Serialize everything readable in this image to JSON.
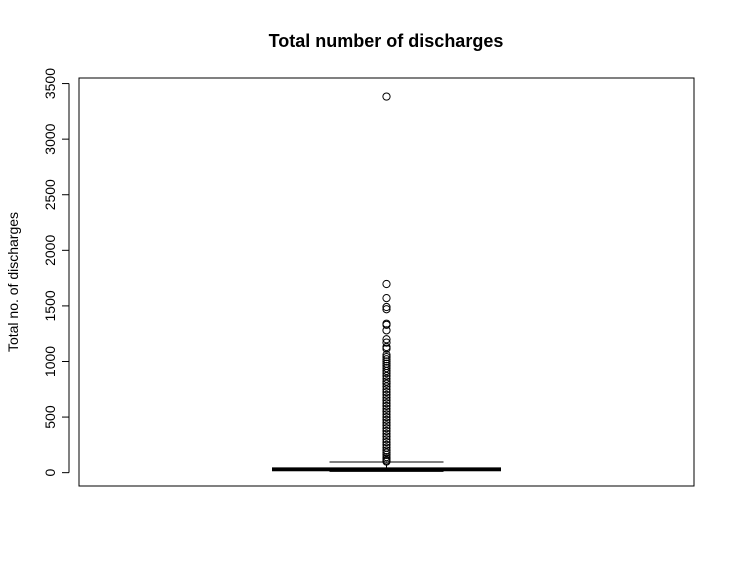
{
  "chart_data": {
    "type": "boxplot",
    "title": "Total number of discharges",
    "xlabel": "",
    "ylabel": "Total no. of discharges",
    "ylim": [
      -120,
      3550
    ],
    "yticks": [
      0,
      500,
      1000,
      1500,
      2000,
      2500,
      3000,
      3500
    ],
    "grid": false,
    "box": {
      "whisker_low": 11,
      "q1": 17,
      "median": 29,
      "q3": 43,
      "whisker_high": 96
    },
    "outliers": [
      3383,
      1697,
      1570,
      1490,
      1470,
      1340,
      1330,
      1280,
      1200,
      1170,
      1130,
      1115,
      1060,
      1040,
      1020,
      1000,
      980,
      960,
      940,
      915,
      895,
      870,
      845,
      820,
      800,
      775,
      750,
      725,
      700,
      675,
      650,
      625,
      600,
      575,
      550,
      525,
      500,
      475,
      450,
      425,
      400,
      375,
      350,
      325,
      300,
      275,
      250,
      225,
      200,
      180,
      160,
      140,
      125,
      110,
      100
    ]
  }
}
